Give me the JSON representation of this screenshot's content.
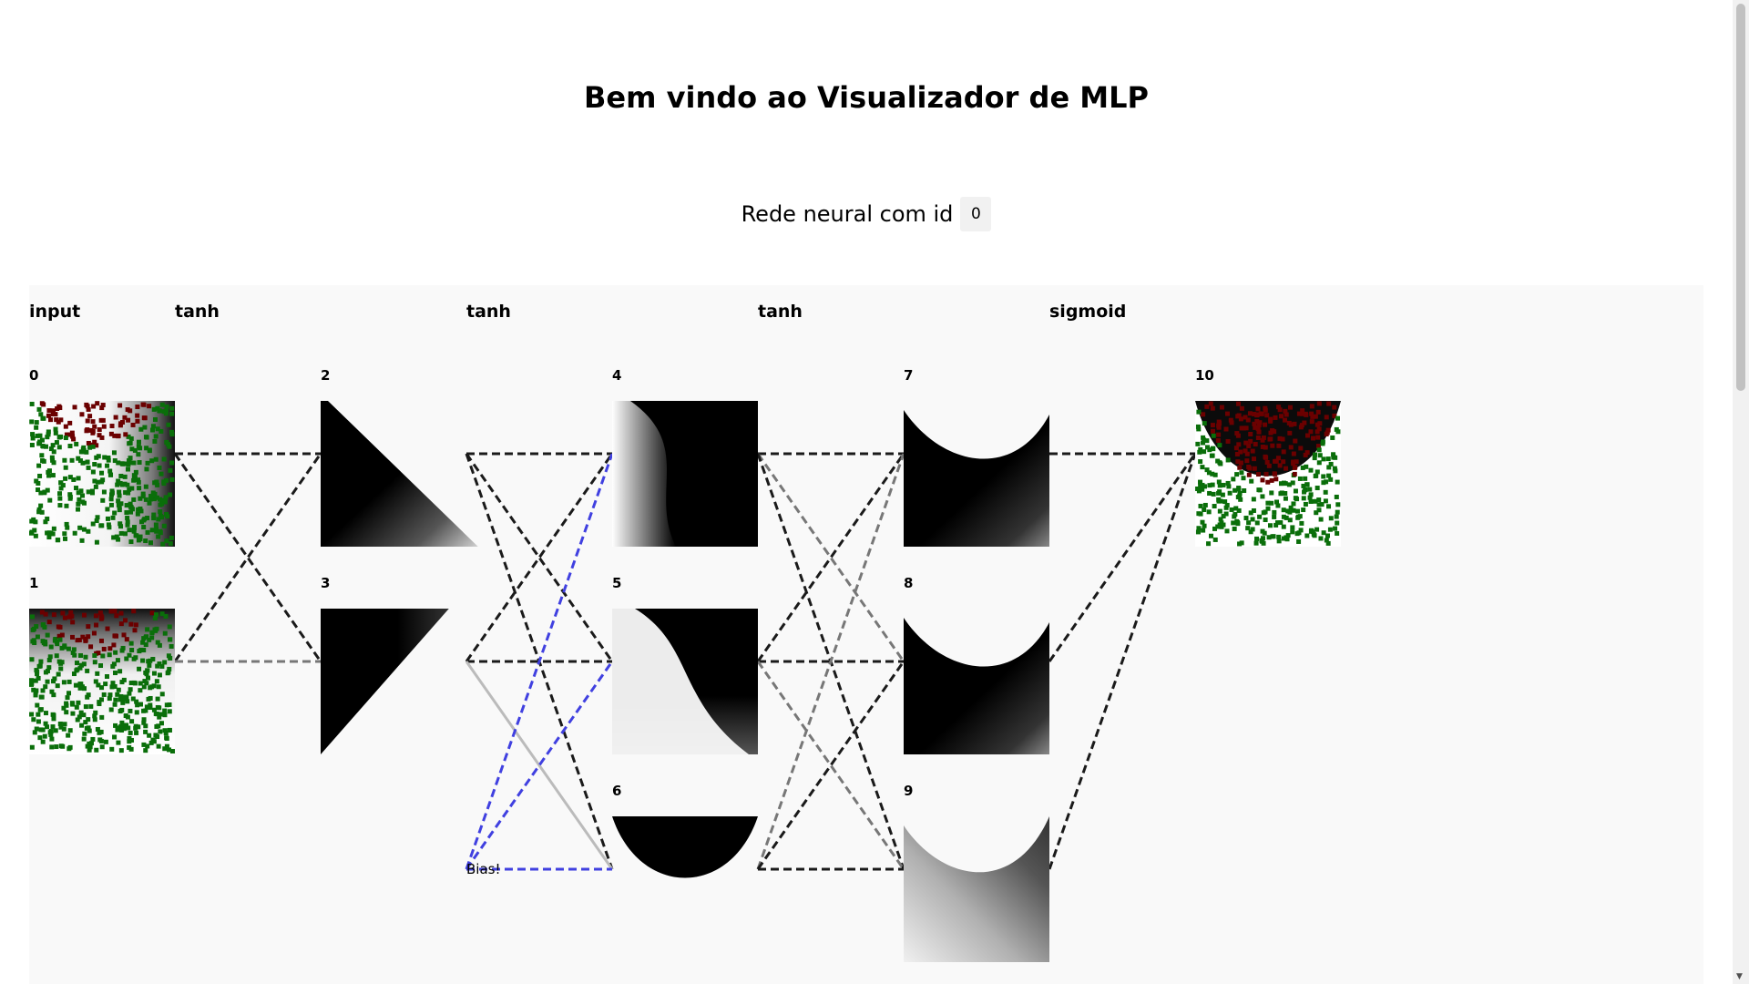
{
  "header": {
    "title": "Bem vindo ao Visualizador de MLP",
    "network_label": "Rede neural com id",
    "network_id": "0"
  },
  "layers": [
    {
      "label": "input"
    },
    {
      "label": "tanh"
    },
    {
      "label": "tanh"
    },
    {
      "label": "tanh"
    },
    {
      "label": "sigmoid"
    }
  ],
  "nodes": [
    {
      "id": "0",
      "kind": "input-x"
    },
    {
      "id": "1",
      "kind": "input-y"
    },
    {
      "id": "2",
      "kind": "diag"
    },
    {
      "id": "3",
      "kind": "tri"
    },
    {
      "id": "4",
      "kind": "s-curve"
    },
    {
      "id": "5",
      "kind": "s-curve2"
    },
    {
      "id": "6",
      "kind": "bowl"
    },
    {
      "id": "7",
      "kind": "u-dark"
    },
    {
      "id": "8",
      "kind": "u-dark"
    },
    {
      "id": "9",
      "kind": "u-light"
    },
    {
      "id": "10",
      "kind": "output"
    }
  ],
  "bias_label": "Bias!",
  "colors": {
    "class_a": "#6b0000",
    "class_b": "#0a6e0a",
    "edge_dark": "#1a1a1a",
    "edge_mid": "#777777",
    "edge_light": "#bbbbbb",
    "edge_bias": "#4040e0",
    "panel": "#f9f9f9"
  }
}
